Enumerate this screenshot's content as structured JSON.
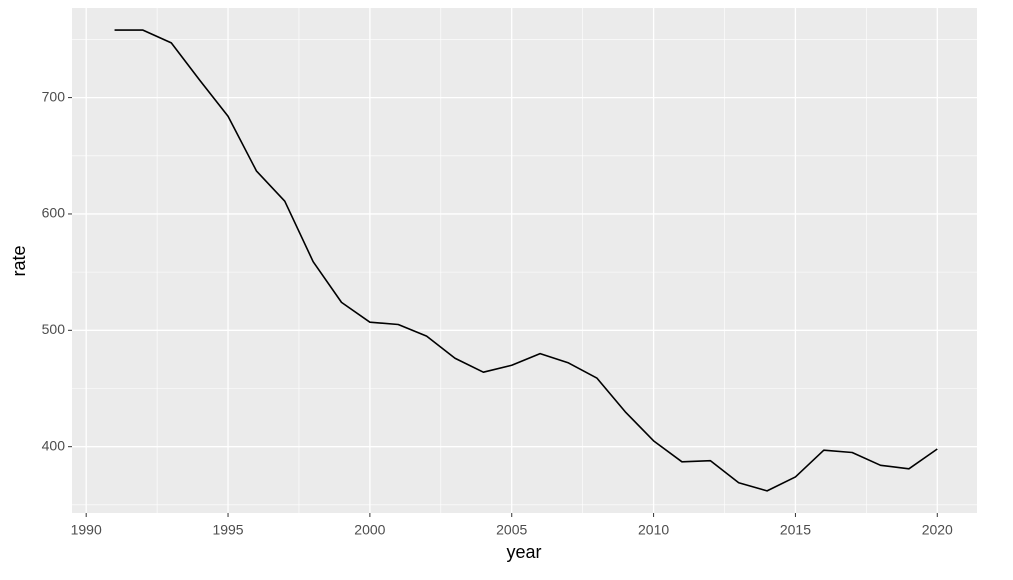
{
  "chart_data": {
    "type": "line",
    "x_label": "year",
    "y_label": "rate",
    "x": [
      1991,
      1992,
      1993,
      1994,
      1995,
      1996,
      1997,
      1998,
      1999,
      2000,
      2001,
      2002,
      2003,
      2004,
      2005,
      2006,
      2007,
      2008,
      2009,
      2010,
      2011,
      2012,
      2013,
      2014,
      2015,
      2016,
      2017,
      2018,
      2019,
      2020
    ],
    "series": [
      {
        "color": "#000000",
        "values": [
          758,
          758,
          747,
          715,
          684,
          637,
          611,
          559,
          524,
          507,
          505,
          495,
          476,
          464,
          470,
          480,
          472,
          459,
          430,
          405,
          387,
          388,
          369,
          362,
          374,
          397,
          395,
          384,
          381,
          398
        ]
      }
    ],
    "xlim": [
      1989.5,
      2021.4
    ],
    "xticks": [
      1990,
      1995,
      2000,
      2005,
      2010,
      2015,
      2020
    ],
    "ylim": [
      343,
      777
    ],
    "yticks": [
      400,
      500,
      600,
      700
    ],
    "grid": true,
    "minor_grid": true
  }
}
